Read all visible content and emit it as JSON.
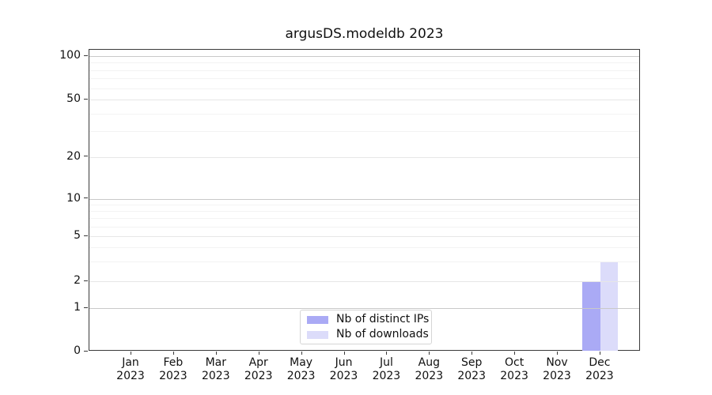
{
  "title": "argusDS.modeldb 2023",
  "chart_data": {
    "type": "bar",
    "title": "argusDS.modeldb 2023",
    "categories": [
      "Jan 2023",
      "Feb 2023",
      "Mar 2023",
      "Apr 2023",
      "May 2023",
      "Jun 2023",
      "Jul 2023",
      "Aug 2023",
      "Sep 2023",
      "Oct 2023",
      "Nov 2023",
      "Dec 2023"
    ],
    "x_tick_months": [
      "Jan",
      "Feb",
      "Mar",
      "Apr",
      "May",
      "Jun",
      "Jul",
      "Aug",
      "Sep",
      "Oct",
      "Nov",
      "Dec"
    ],
    "x_tick_year": "2023",
    "series": [
      {
        "name": "Nb of distinct IPs",
        "color": "#aaaaf5",
        "values": [
          0,
          0,
          0,
          0,
          0,
          0,
          0,
          0,
          0,
          0,
          0,
          2
        ]
      },
      {
        "name": "Nb of downloads",
        "color": "#dcdcfa",
        "values": [
          0,
          0,
          0,
          0,
          0,
          0,
          0,
          0,
          0,
          0,
          0,
          3
        ]
      }
    ],
    "xlabel": "",
    "ylabel": "",
    "yscale": "asinh",
    "ylim": [
      0,
      110
    ],
    "yticks": [
      0,
      1,
      2,
      5,
      10,
      20,
      50,
      100
    ],
    "minor_yticks": [
      3,
      4,
      6,
      7,
      8,
      9,
      30,
      40,
      60,
      70,
      80,
      90
    ],
    "grid": true,
    "legend_position": "lower center"
  },
  "colors": {
    "decade_gridline": "#c9c9c9",
    "major_gridline": "#e6e6e6",
    "minor_gridline": "#f3f3f3",
    "axis": "#3a3a3a",
    "text": "#111111",
    "legend_border": "#d5d5d5",
    "background": "#ffffff"
  }
}
